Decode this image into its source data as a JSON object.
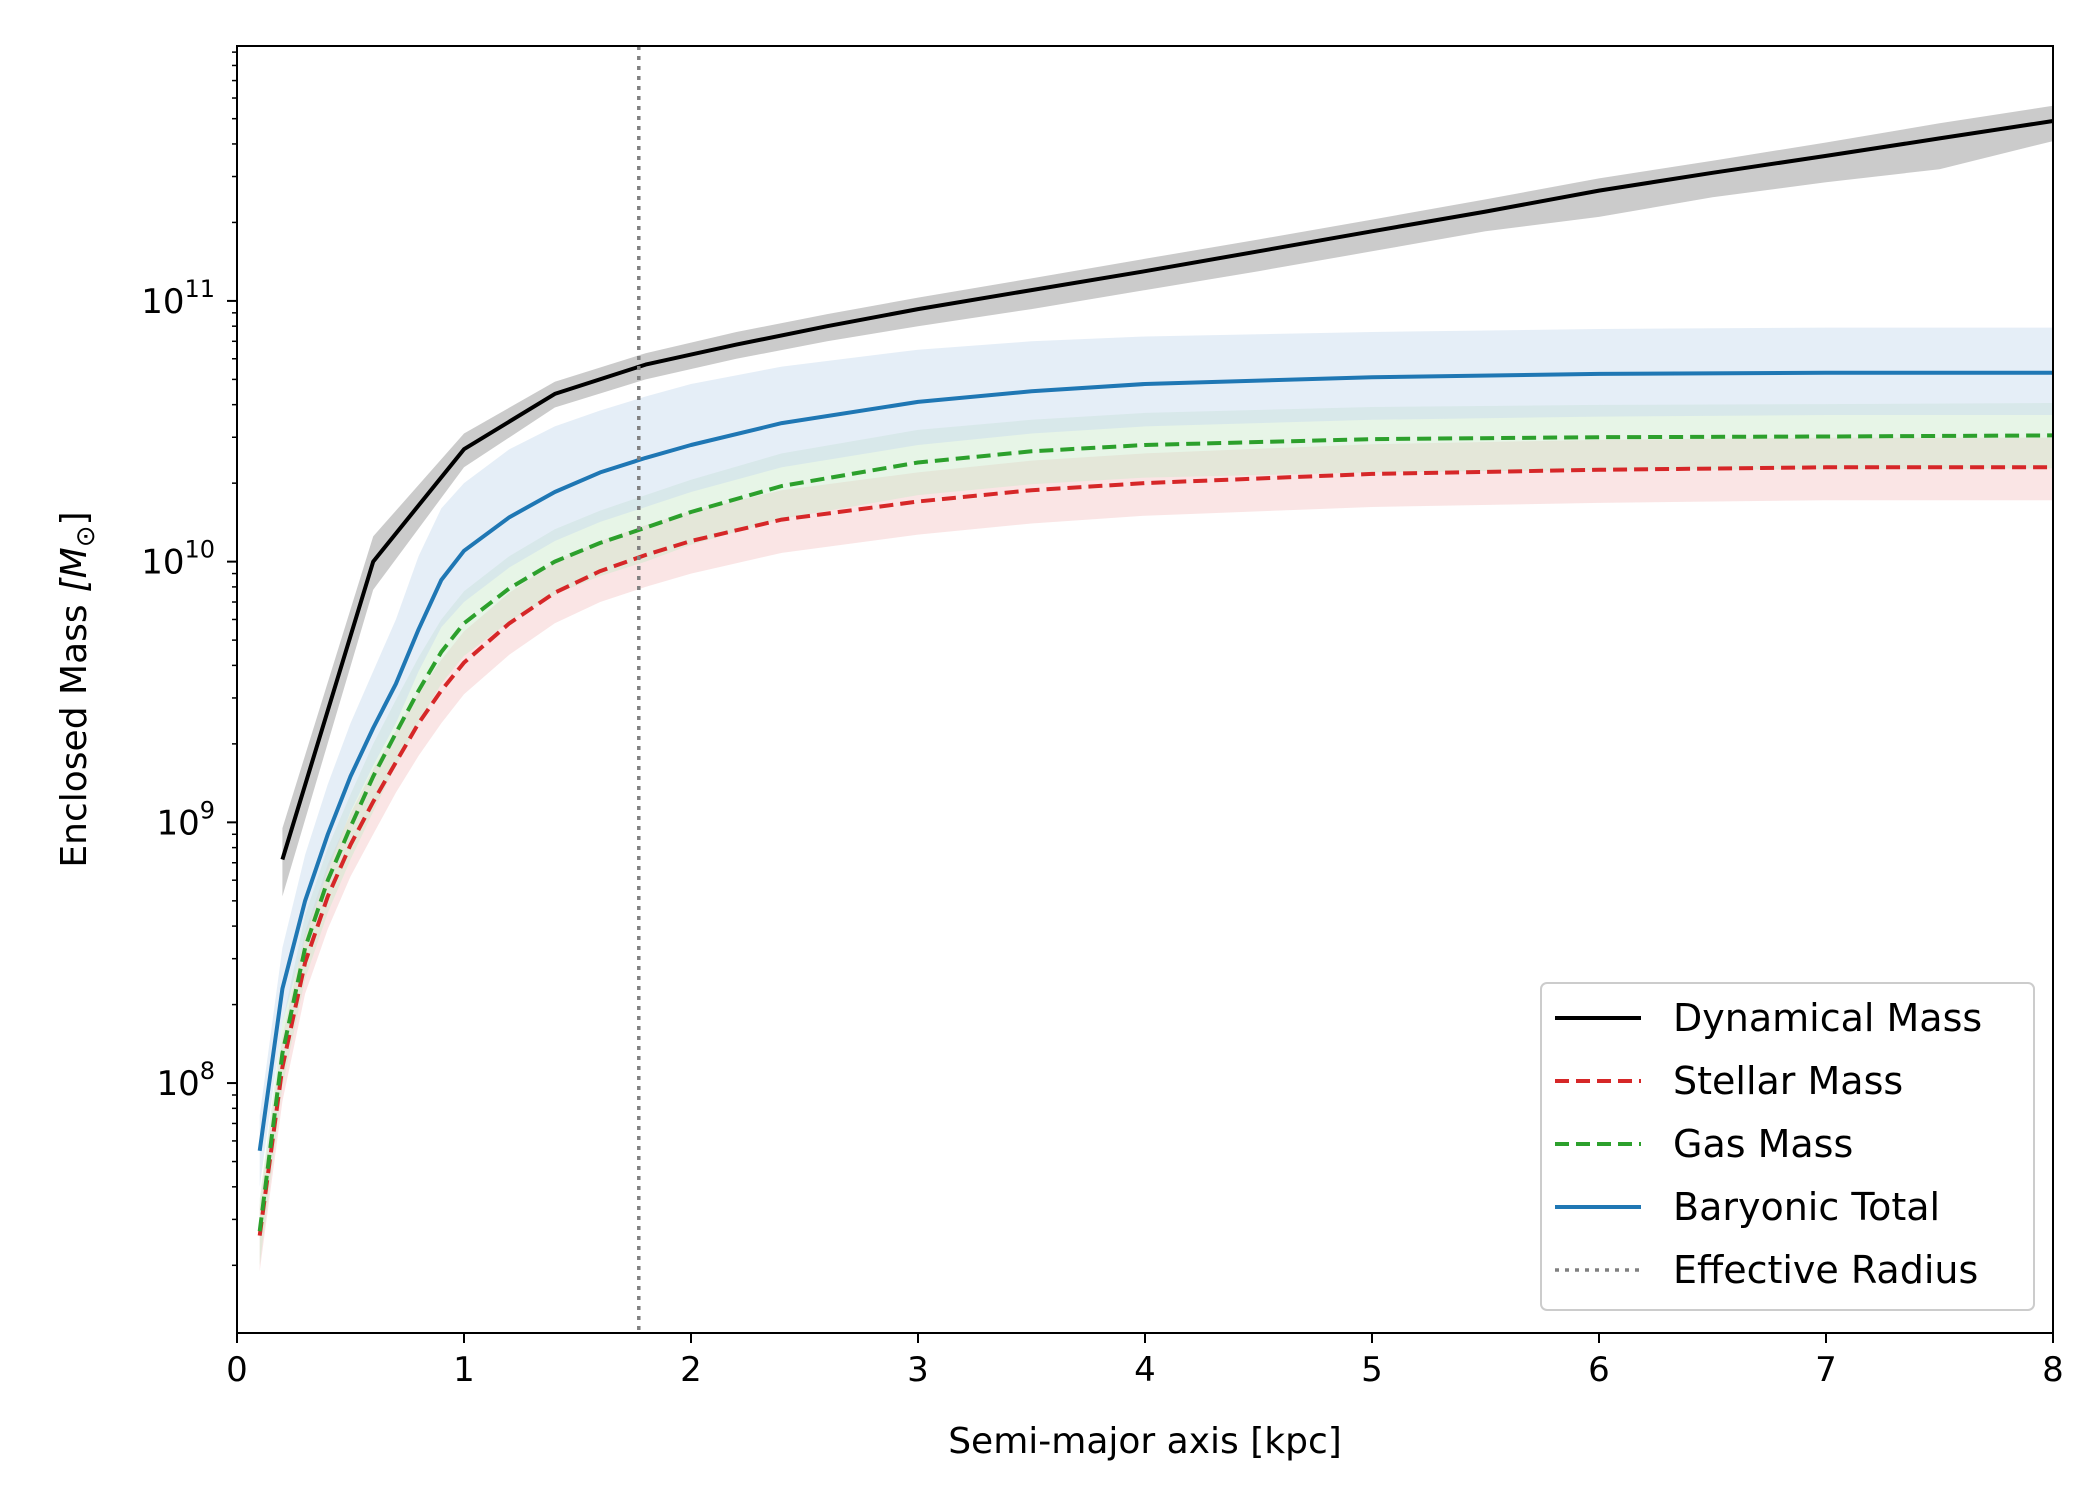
{
  "chart_data": {
    "type": "line",
    "xlabel": "Semi-major axis [kpc]",
    "ylabel": "Enclosed Mass",
    "ylabel_unit": "[M",
    "ylabel_unit_sub": "⊙",
    "ylabel_unit_close": "]",
    "xlim": [
      0,
      8
    ],
    "ylim": [
      11000000.0,
      950000000000.0
    ],
    "yscale": "log",
    "grid": false,
    "legend_position": "lower-right",
    "x_ticks": [
      "0",
      "1",
      "2",
      "3",
      "4",
      "5",
      "6",
      "7",
      "8"
    ],
    "y_ticks": [
      {
        "value": 100000000.0,
        "base": "10",
        "exp": "8"
      },
      {
        "value": 1000000000.0,
        "base": "10",
        "exp": "9"
      },
      {
        "value": 10000000000.0,
        "base": "10",
        "exp": "10"
      },
      {
        "value": 100000000000.0,
        "base": "10",
        "exp": "11"
      }
    ],
    "reference_line": {
      "name": "Effective Radius",
      "x": 1.77,
      "color": "#808080"
    },
    "series": [
      {
        "name": "Dynamical Mass",
        "color": "#000000",
        "dash": "solid",
        "band_color": "#c8c8c8",
        "band_opacity": 0.95,
        "x": [
          0.2,
          0.6,
          1.0,
          1.4,
          1.8,
          2.2,
          2.6,
          3.0,
          3.5,
          4.0,
          4.5,
          5.0,
          5.5,
          6.0,
          6.5,
          7.0,
          7.5,
          8.0
        ],
        "y": [
          720000000.0,
          10000000000.0,
          27000000000.0,
          44000000000.0,
          57000000000.0,
          68000000000.0,
          80000000000.0,
          93000000000.0,
          110000000000.0,
          130000000000.0,
          155000000000.0,
          185000000000.0,
          220000000000.0,
          265000000000.0,
          310000000000.0,
          360000000000.0,
          420000000000.0,
          490000000000.0
        ],
        "lower": [
          520000000.0,
          7800000000.0,
          23000000000.0,
          39000000000.0,
          50000000000.0,
          60000000000.0,
          70000000000.0,
          80000000000.0,
          93000000000.0,
          110000000000.0,
          130000000000.0,
          155000000000.0,
          185000000000.0,
          210000000000.0,
          250000000000.0,
          285000000000.0,
          320000000000.0,
          410000000000.0
        ],
        "upper": [
          950000000.0,
          12500000000.0,
          31000000000.0,
          49000000000.0,
          63000000000.0,
          76000000000.0,
          89000000000.0,
          103000000000.0,
          122000000000.0,
          145000000000.0,
          172000000000.0,
          205000000000.0,
          245000000000.0,
          295000000000.0,
          345000000000.0,
          405000000000.0,
          480000000000.0,
          560000000000.0
        ]
      },
      {
        "name": "Stellar Mass",
        "color": "#d62728",
        "dash": "dashed",
        "band_color": "#f4c6c6",
        "band_opacity": 0.45,
        "x": [
          0.1,
          0.2,
          0.3,
          0.4,
          0.5,
          0.6,
          0.7,
          0.8,
          0.9,
          1.0,
          1.2,
          1.4,
          1.6,
          1.8,
          2.0,
          2.4,
          3.0,
          3.5,
          4.0,
          5.0,
          6.0,
          7.0,
          8.0
        ],
        "y": [
          26000000.0,
          115000000.0,
          290000000.0,
          520000000.0,
          820000000.0,
          1200000000.0,
          1700000000.0,
          2400000000.0,
          3200000000.0,
          4100000000.0,
          5800000000.0,
          7600000000.0,
          9200000000.0,
          10600000000.0,
          12000000000.0,
          14500000000.0,
          17000000000.0,
          18800000000.0,
          20000000000.0,
          21700000000.0,
          22500000000.0,
          23000000000.0,
          23000000000.0
        ],
        "lower": [
          19000000.0,
          85000000.0,
          220000000.0,
          390000000.0,
          620000000.0,
          900000000.0,
          1300000000.0,
          1800000000.0,
          2400000000.0,
          3100000000.0,
          4400000000.0,
          5800000000.0,
          7000000000.0,
          8000000000.0,
          9000000000.0,
          10800000000.0,
          12700000000.0,
          14000000000.0,
          15000000000.0,
          16200000000.0,
          16800000000.0,
          17200000000.0,
          17200000000.0
        ],
        "upper": [
          34000000.0,
          150000000.0,
          380000000.0,
          690000000.0,
          1080000000.0,
          1600000000.0,
          2250000000.0,
          3150000000.0,
          4200000000.0,
          5400000000.0,
          7600000000.0,
          10000000000.0,
          12000000000.0,
          13800000000.0,
          15600000000.0,
          18800000000.0,
          22000000000.0,
          24400000000.0,
          26000000000.0,
          28200000000.0,
          29300000000.0,
          29900000000.0,
          29900000000.0
        ]
      },
      {
        "name": "Gas Mass",
        "color": "#2ca02c",
        "dash": "dashed",
        "band_color": "#c9e8c9",
        "band_opacity": 0.45,
        "x": [
          0.1,
          0.2,
          0.3,
          0.4,
          0.5,
          0.6,
          0.7,
          0.8,
          0.9,
          1.0,
          1.2,
          1.4,
          1.6,
          1.8,
          2.0,
          2.4,
          3.0,
          3.5,
          4.0,
          5.0,
          6.0,
          7.0,
          8.0
        ],
        "y": [
          27000000.0,
          130000000.0,
          330000000.0,
          600000000.0,
          960000000.0,
          1500000000.0,
          2200000000.0,
          3200000000.0,
          4500000000.0,
          5800000000.0,
          7900000000.0,
          10000000000.0,
          11800000000.0,
          13500000000.0,
          15500000000.0,
          19500000000.0,
          24000000000.0,
          26500000000.0,
          28000000000.0,
          29500000000.0,
          30000000000.0,
          30200000000.0,
          30500000000.0
        ],
        "lower": [
          20000000.0,
          97000000.0,
          250000000.0,
          450000000.0,
          720000000.0,
          1100000000.0,
          1650000000.0,
          2400000000.0,
          3400000000.0,
          4350000000.0,
          5900000000.0,
          7500000000.0,
          8800000000.0,
          10000000000.0,
          11600000000.0,
          14600000000.0,
          18000000000.0,
          19800000000.0,
          21000000000.0,
          22000000000.0,
          22500000000.0,
          22600000000.0,
          22800000000.0
        ],
        "upper": [
          36000000.0,
          170000000.0,
          440000000.0,
          800000000.0,
          1280000000.0,
          2000000000.0,
          2950000000.0,
          4300000000.0,
          6000000000.0,
          7700000000.0,
          10500000000.0,
          13300000000.0,
          15700000000.0,
          18000000000.0,
          20600000000.0,
          26000000000.0,
          32000000000.0,
          35000000000.0,
          37200000000.0,
          39200000000.0,
          39900000000.0,
          40200000000.0,
          40600000000.0
        ]
      },
      {
        "name": "Baryonic Total",
        "color": "#1f77b4",
        "dash": "solid",
        "band_color": "#c6d9ee",
        "band_opacity": 0.45,
        "x": [
          0.1,
          0.2,
          0.3,
          0.4,
          0.5,
          0.6,
          0.7,
          0.8,
          0.9,
          1.0,
          1.2,
          1.4,
          1.6,
          1.8,
          2.0,
          2.4,
          3.0,
          3.5,
          4.0,
          5.0,
          6.0,
          7.0,
          8.0
        ],
        "y": [
          55000000.0,
          230000000.0,
          500000000.0,
          900000000.0,
          1500000000.0,
          2300000000.0,
          3400000000.0,
          5500000000.0,
          8500000000.0,
          11000000000.0,
          14800000000.0,
          18500000000.0,
          22000000000.0,
          25000000000.0,
          28000000000.0,
          34000000000.0,
          41000000000.0,
          45000000000.0,
          48000000000.0,
          51000000000.0,
          52500000000.0,
          53000000000.0,
          53000000000.0
        ],
        "lower": [
          40000000.0,
          170000000.0,
          360000000.0,
          650000000.0,
          1100000000.0,
          1650000000.0,
          2400000000.0,
          3800000000.0,
          5600000000.0,
          7000000000.0,
          9500000000.0,
          12000000000.0,
          14200000000.0,
          16200000000.0,
          18500000000.0,
          23000000000.0,
          28000000000.0,
          31000000000.0,
          33000000000.0,
          35000000000.0,
          36000000000.0,
          36500000000.0,
          36500000000.0
        ],
        "upper": [
          75000000.0,
          330000000.0,
          750000000.0,
          1400000000.0,
          2400000000.0,
          3800000000.0,
          6000000000.0,
          10500000000.0,
          16000000000.0,
          20000000000.0,
          27000000000.0,
          33000000000.0,
          38000000000.0,
          43000000000.0,
          48000000000.0,
          56000000000.0,
          65000000000.0,
          70000000000.0,
          73000000000.0,
          76000000000.0,
          78000000000.0,
          79000000000.0,
          79000000000.0
        ]
      }
    ],
    "legend": [
      {
        "label": "Dynamical Mass",
        "color": "#000000",
        "dash": "solid"
      },
      {
        "label": "Stellar Mass",
        "color": "#d62728",
        "dash": "dashed"
      },
      {
        "label": "Gas Mass",
        "color": "#2ca02c",
        "dash": "dashed"
      },
      {
        "label": "Baryonic Total",
        "color": "#1f77b4",
        "dash": "solid"
      },
      {
        "label": "Effective Radius",
        "color": "#808080",
        "dash": "dotted"
      }
    ]
  }
}
